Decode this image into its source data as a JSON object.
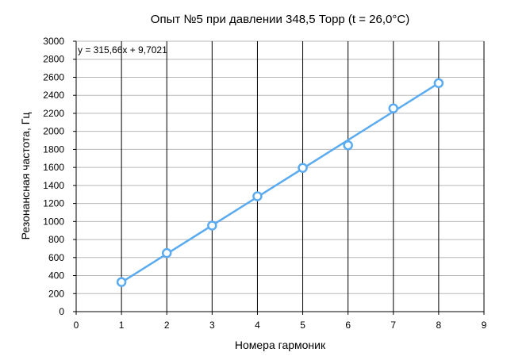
{
  "chart_data": {
    "type": "scatter",
    "title": "Опыт №5 при давлении 348,5 Торр (t = 26,0°C)",
    "xlabel": "Номера гармоник",
    "ylabel": "Резонансная частота, Гц",
    "xlim": [
      0,
      9
    ],
    "ylim": [
      0,
      3000
    ],
    "x_ticks": [
      0,
      1,
      2,
      3,
      4,
      5,
      6,
      7,
      8,
      9
    ],
    "y_ticks": [
      0,
      200,
      400,
      600,
      800,
      1000,
      1200,
      1400,
      1600,
      1800,
      2000,
      2200,
      2400,
      2600,
      2800,
      3000
    ],
    "grid": true,
    "series": [
      {
        "x": [
          1,
          2,
          3,
          4,
          5,
          6,
          7,
          8
        ],
        "values": [
          328,
          650,
          955,
          1280,
          1595,
          1845,
          2255,
          2535
        ],
        "color": "#5aabef",
        "marker": "open-circle"
      }
    ],
    "trendline": {
      "equation": "y = 315,66x + 9,7021",
      "slope": 315.66,
      "intercept": 9.7021,
      "x_range": [
        1,
        8
      ],
      "color": "#5aabef"
    }
  }
}
